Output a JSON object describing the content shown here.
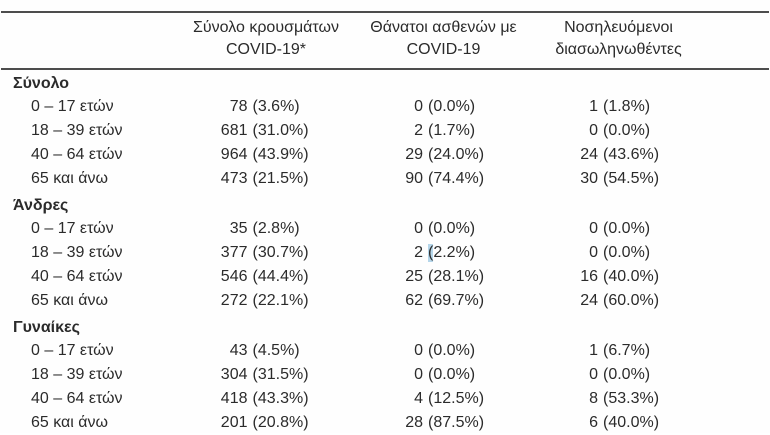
{
  "page": {
    "background": "#fefefe",
    "text_color": "#2b2b2b",
    "rule_color": "#4d4d4d",
    "selection_color": "#b5d6ea"
  },
  "table": {
    "header": {
      "columns": [
        {
          "line1": "Σύνολο κρουσμάτων",
          "line2": "COVID-19*"
        },
        {
          "line1": "Θάνατοι ασθενών με",
          "line2": "COVID-19"
        },
        {
          "line1": "Νοσηλευόμενοι",
          "line2": "διασωληνωθέντες"
        }
      ]
    },
    "groups": [
      {
        "label": "Σύνολο",
        "rows": [
          {
            "label": "0 – 17 ετών",
            "cells": [
              {
                "count": "78",
                "pct": "(3.6%)"
              },
              {
                "count": "0",
                "pct": "(0.0%)"
              },
              {
                "count": "1",
                "pct": "(1.8%)"
              }
            ]
          },
          {
            "label": "18 – 39 ετών",
            "cells": [
              {
                "count": "681",
                "pct": "(31.0%)"
              },
              {
                "count": "2",
                "pct": "(1.7%)"
              },
              {
                "count": "0",
                "pct": "(0.0%)"
              }
            ]
          },
          {
            "label": "40 – 64 ετών",
            "cells": [
              {
                "count": "964",
                "pct": "(43.9%)"
              },
              {
                "count": "29",
                "pct": "(24.0%)"
              },
              {
                "count": "24",
                "pct": "(43.6%)"
              }
            ]
          },
          {
            "label": "65 και άνω",
            "cells": [
              {
                "count": "473",
                "pct": "(21.5%)"
              },
              {
                "count": "90",
                "pct": "(74.4%)"
              },
              {
                "count": "30",
                "pct": "(54.5%)"
              }
            ]
          }
        ]
      },
      {
        "label": "Άνδρες",
        "rows": [
          {
            "label": "0 – 17 ετών",
            "cells": [
              {
                "count": "35",
                "pct": "(2.8%)"
              },
              {
                "count": "0",
                "pct": "(0.0%)"
              },
              {
                "count": "0",
                "pct": "(0.0%)"
              }
            ]
          },
          {
            "label": "18 – 39 ετών",
            "cells": [
              {
                "count": "377",
                "pct": "(30.7%)"
              },
              {
                "count": "2",
                "pct": "(2.2%)",
                "highlight_paren": true
              },
              {
                "count": "0",
                "pct": "(0.0%)"
              }
            ]
          },
          {
            "label": "40 – 64 ετών",
            "cells": [
              {
                "count": "546",
                "pct": "(44.4%)"
              },
              {
                "count": "25",
                "pct": "(28.1%)"
              },
              {
                "count": "16",
                "pct": "(40.0%)"
              }
            ]
          },
          {
            "label": "65 και άνω",
            "cells": [
              {
                "count": "272",
                "pct": "(22.1%)"
              },
              {
                "count": "62",
                "pct": "(69.7%)"
              },
              {
                "count": "24",
                "pct": "(60.0%)"
              }
            ]
          }
        ]
      },
      {
        "label": "Γυναίκες",
        "rows": [
          {
            "label": "0 – 17 ετών",
            "cells": [
              {
                "count": "43",
                "pct": "(4.5%)"
              },
              {
                "count": "0",
                "pct": "(0.0%)"
              },
              {
                "count": "1",
                "pct": "(6.7%)"
              }
            ]
          },
          {
            "label": "18 – 39 ετών",
            "cells": [
              {
                "count": "304",
                "pct": "(31.5%)"
              },
              {
                "count": "0",
                "pct": "(0.0%)"
              },
              {
                "count": "0",
                "pct": "(0.0%)"
              }
            ]
          },
          {
            "label": "40 – 64 ετών",
            "cells": [
              {
                "count": "418",
                "pct": "(43.3%)"
              },
              {
                "count": "4",
                "pct": "(12.5%)"
              },
              {
                "count": "8",
                "pct": "(53.3%)"
              }
            ]
          },
          {
            "label": "65 και άνω",
            "cells": [
              {
                "count": "201",
                "pct": "(20.8%)"
              },
              {
                "count": "28",
                "pct": "(87.5%)"
              },
              {
                "count": "6",
                "pct": "(40.0%)"
              }
            ]
          }
        ]
      }
    ]
  }
}
